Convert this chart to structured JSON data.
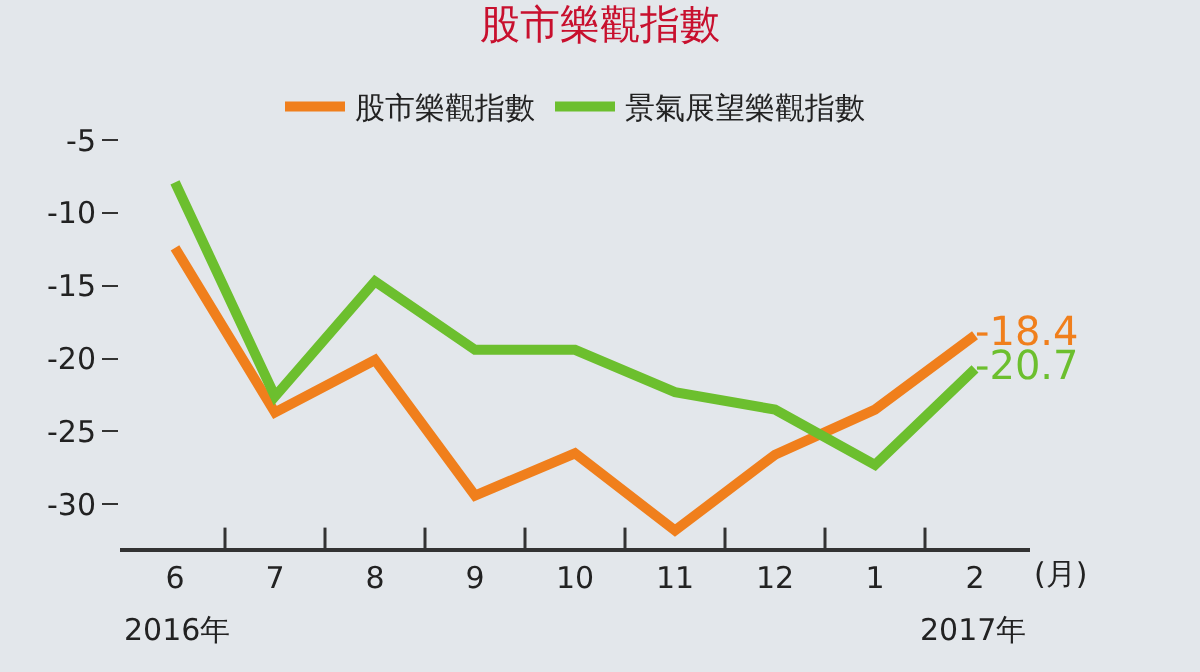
{
  "chart_data": {
    "type": "line",
    "title": "股市樂觀指數",
    "xlabel": "(月)",
    "categories": [
      "6",
      "7",
      "8",
      "9",
      "10",
      "11",
      "12",
      "1",
      "2"
    ],
    "series": [
      {
        "name": "股市樂觀指數",
        "color": "#f07f1c",
        "values": [
          -12.4,
          -23.7,
          -20.1,
          -29.4,
          -26.5,
          -31.8,
          -26.6,
          -23.5,
          -18.4
        ],
        "value_labels": [
          null,
          null,
          null,
          null,
          null,
          null,
          null,
          null,
          "-18.4"
        ]
      },
      {
        "name": "景氣展望樂觀指數",
        "color": "#6cbf2e",
        "values": [
          -7.9,
          -22.6,
          -14.7,
          -19.4,
          -19.4,
          -22.3,
          -23.5,
          -27.3,
          -20.7
        ],
        "value_labels": [
          null,
          null,
          null,
          null,
          null,
          null,
          null,
          null,
          "-20.7"
        ]
      }
    ],
    "ylim": [
      -33,
      -5
    ],
    "yticks": [
      -5,
      -10,
      -15,
      -20,
      -25,
      -30
    ],
    "grid": false,
    "legend": "top",
    "marker": "none",
    "line_style": "solid",
    "annotations": [
      "2016年",
      "2017年"
    ]
  }
}
